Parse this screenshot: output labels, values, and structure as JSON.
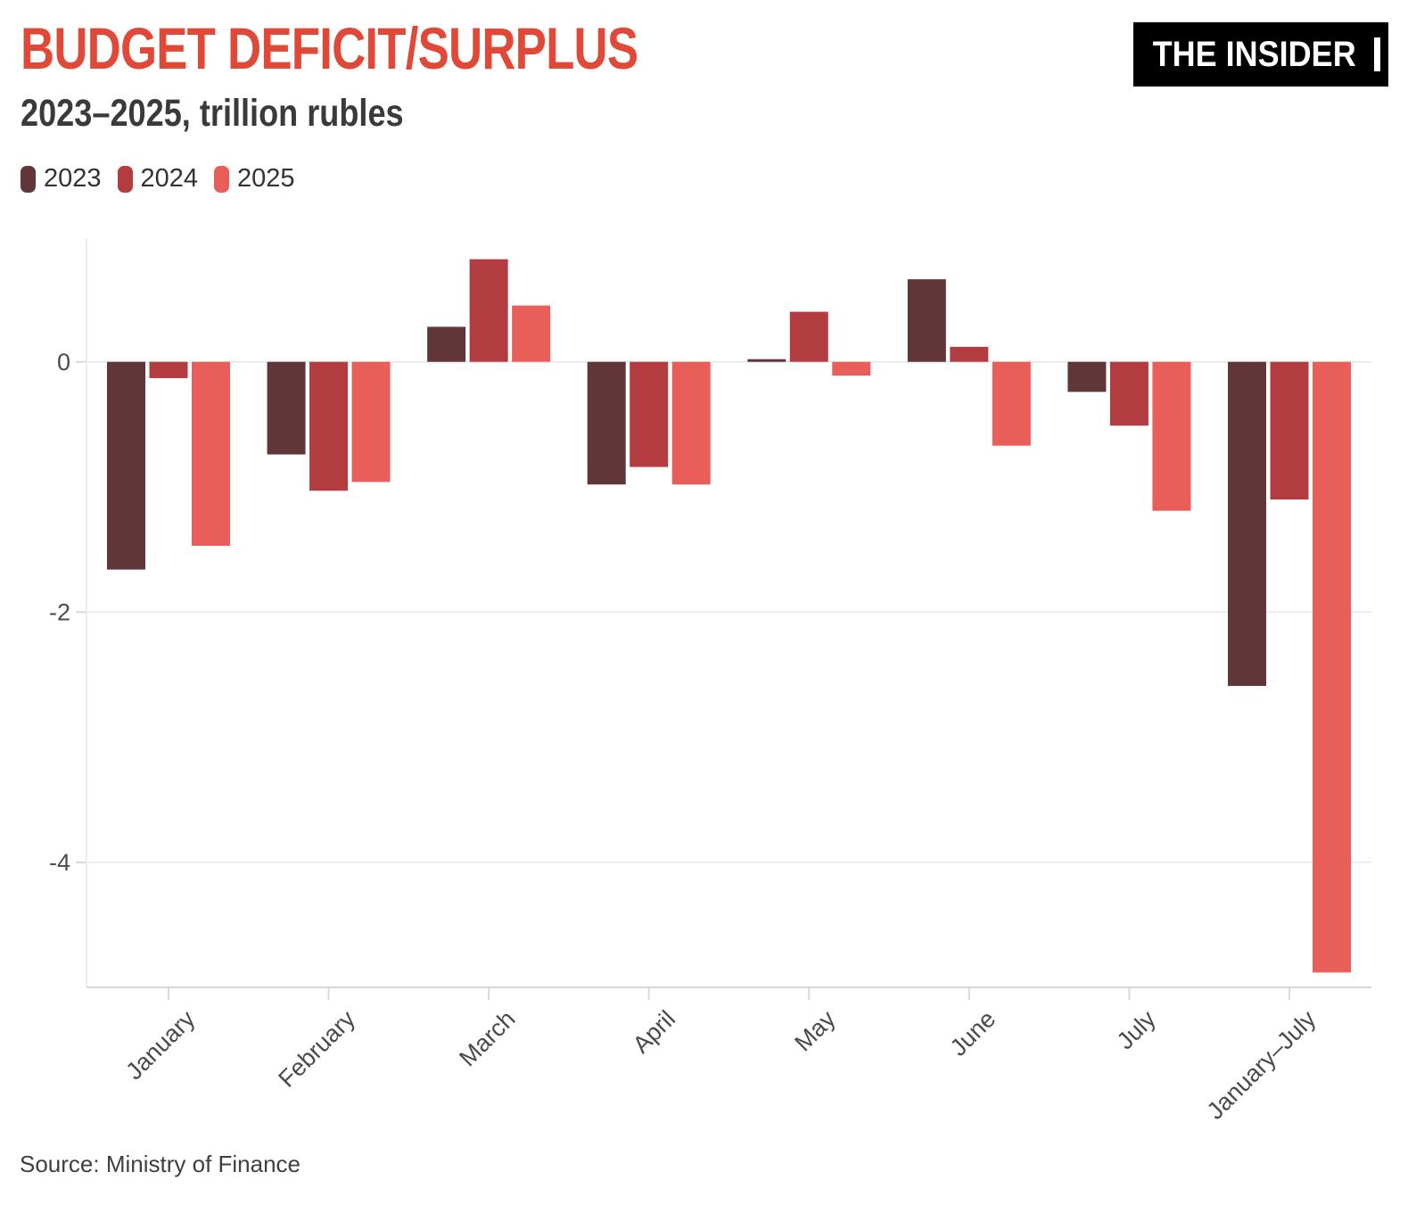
{
  "header": {
    "title": "BUDGET DEFICIT/SURPLUS",
    "subtitle": "2023–2025, trillion rubles"
  },
  "logo": {
    "text": "THE INSIDER"
  },
  "source": {
    "text": "Source: Ministry of Finance"
  },
  "colors": {
    "title": "#E04938",
    "subtitle": "#3A3A3A",
    "axis_text": "#4C4C4C",
    "x_label_text": "#4A4A4A",
    "gridline": "#ECECEC",
    "axis_line": "#D9D9D9",
    "background": "#FFFFFF",
    "logo_bg": "#000000",
    "logo_text": "#FFFFFF"
  },
  "chart_data": {
    "type": "bar",
    "title": "BUDGET DEFICIT/SURPLUS",
    "subtitle": "2023–2025, trillion rubles",
    "unit": "trillion rubles",
    "categories": [
      "January",
      "February",
      "March",
      "April",
      "May",
      "June",
      "July",
      "January–July"
    ],
    "series": [
      {
        "name": "2023",
        "color": "#613638",
        "values": [
          -1.66,
          -0.74,
          0.28,
          -0.98,
          0.02,
          0.66,
          -0.24,
          -2.59
        ]
      },
      {
        "name": "2024",
        "color": "#B23C40",
        "values": [
          -0.13,
          -1.03,
          0.82,
          -0.84,
          0.4,
          0.12,
          -0.51,
          -1.1
        ]
      },
      {
        "name": "2025",
        "color": "#E95E59",
        "values": [
          -1.47,
          -0.96,
          0.45,
          -0.98,
          -0.11,
          -0.67,
          -1.19,
          -4.88
        ]
      }
    ],
    "y_ticks": [
      0,
      -2,
      -4
    ],
    "ylim": [
      -5.0,
      1.0
    ],
    "grid": "horizontal",
    "legend_position": "top-left",
    "source": "Source: Ministry of Finance"
  }
}
